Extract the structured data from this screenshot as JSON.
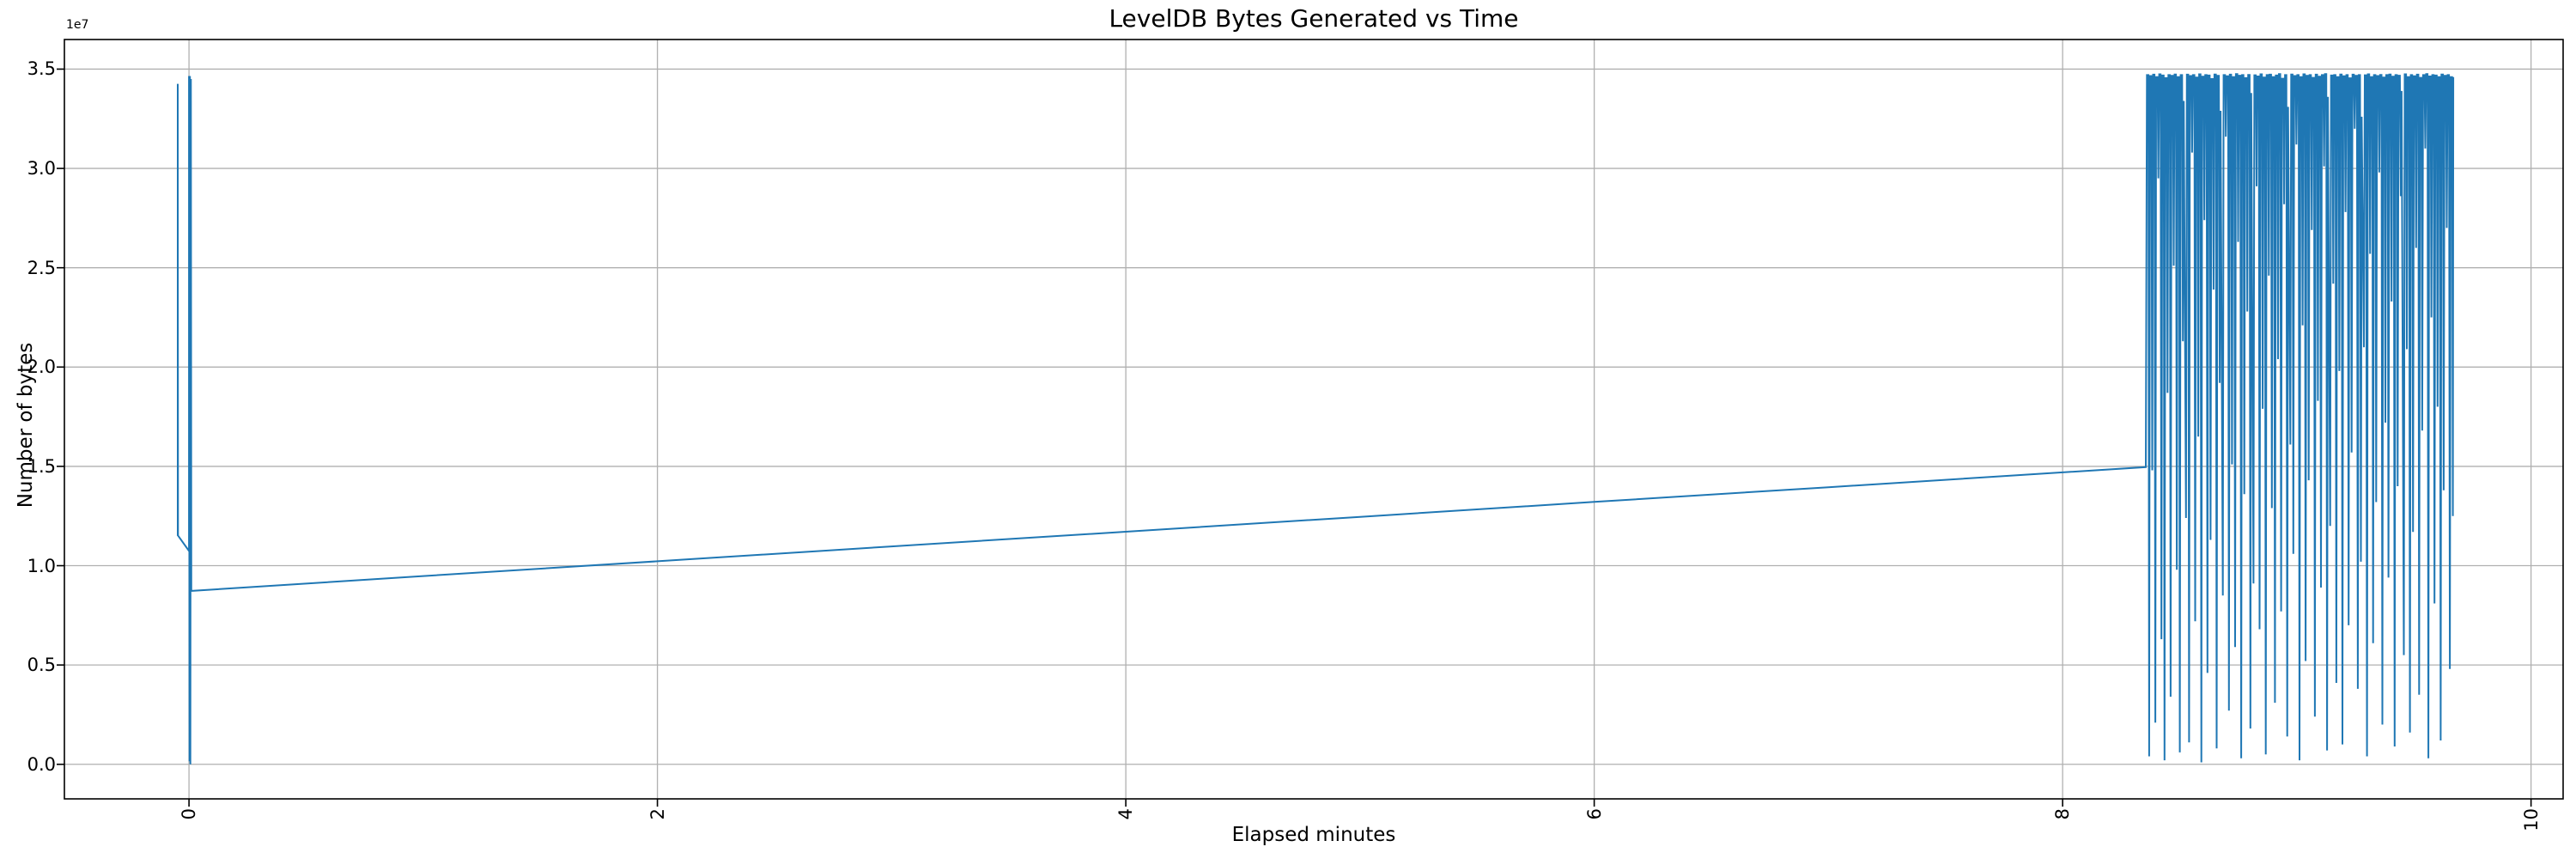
{
  "figure": {
    "background": "#ffffff"
  },
  "chart_data": {
    "type": "line",
    "title": "LevelDB Bytes Generated vs Time",
    "xlabel": "Elapsed minutes",
    "ylabel": "Number of bytes",
    "offset_text": "1e7",
    "grid": true,
    "grid_color": "#b0b0b0",
    "spine_color": "#000000",
    "line_color": "#1f77b4",
    "legend": "none",
    "xlim": [
      -0.532,
      10.137
    ],
    "ylim_e6": [
      -1.74,
      36.49
    ],
    "y_unit_multiplier": 1000000,
    "xticks": {
      "values": [
        0,
        2,
        4,
        6,
        8,
        10
      ],
      "labels": [
        "0",
        "2",
        "4",
        "6",
        "8",
        "10"
      ],
      "rotation_deg": 90
    },
    "yticks": {
      "values_e6": [
        0,
        5,
        10,
        15,
        20,
        25,
        30,
        35
      ],
      "labels": [
        "0.0",
        "0.5",
        "1.0",
        "1.5",
        "2.0",
        "2.5",
        "3.0",
        "3.5"
      ]
    },
    "series": [
      {
        "name": "leveldb-bytes-generated",
        "points_e6": [
          [
            -0.048,
            11.5
          ],
          [
            -0.048,
            34.26
          ],
          [
            -0.047,
            11.52
          ],
          [
            0.0,
            10.74
          ],
          [
            0.0,
            34.65
          ],
          [
            0.002,
            0.15
          ],
          [
            0.004,
            34.65
          ],
          [
            0.006,
            0.0
          ],
          [
            0.008,
            34.5
          ],
          [
            0.01,
            8.73
          ],
          [
            1.0,
            9.48
          ],
          [
            2.0,
            10.22
          ],
          [
            3.0,
            10.97
          ],
          [
            4.0,
            11.71
          ],
          [
            5.0,
            12.46
          ],
          [
            6.0,
            13.21
          ],
          [
            7.0,
            13.95
          ],
          [
            8.0,
            14.7
          ],
          [
            8.355,
            14.96
          ]
        ],
        "burst": {
          "x_start": 8.36,
          "x_step": 0.0131,
          "cap_dx": 0.006,
          "dip_dx": 0.0095,
          "cap_threshold_e6": 34.0,
          "highs_e6": [
            34.7,
            34.65,
            34.72,
            34.6,
            34.74,
            34.68,
            34.55,
            34.7,
            34.66,
            34.73,
            34.6,
            34.7,
            33.4,
            34.72,
            34.65,
            34.7,
            34.58,
            34.74,
            34.62,
            34.7,
            34.68,
            34.5,
            34.73,
            34.66,
            32.9,
            34.7,
            34.64,
            34.72,
            34.6,
            34.75,
            34.67,
            34.7,
            34.55,
            34.71,
            33.8,
            34.69,
            34.63,
            34.74,
            34.58,
            34.7,
            34.72,
            34.6,
            34.68,
            34.75,
            34.52,
            34.7,
            33.1,
            34.73,
            34.65,
            34.7,
            34.6,
            34.74,
            34.66,
            34.7,
            34.56,
            34.72,
            34.62,
            34.7,
            34.75,
            33.6,
            34.68,
            34.7,
            34.6,
            34.73,
            34.64,
            34.7,
            34.54,
            34.72,
            34.66,
            34.7,
            32.6,
            34.69,
            34.74,
            34.6,
            34.7,
            34.65,
            34.71,
            34.58,
            34.7,
            34.73,
            34.62,
            34.7,
            34.67,
            33.9,
            34.74,
            34.6,
            34.7,
            34.64,
            34.72,
            34.56,
            34.7,
            34.75,
            34.63,
            34.7,
            34.68,
            34.6,
            34.73,
            34.66,
            34.7,
            34.6
          ],
          "lows_e6": [
            0.4,
            14.8,
            2.1,
            29.5,
            6.3,
            0.2,
            18.7,
            3.4,
            25.1,
            9.8,
            0.6,
            21.3,
            12.4,
            1.1,
            30.8,
            7.2,
            16.5,
            0.1,
            27.4,
            4.6,
            11.3,
            23.9,
            0.8,
            19.2,
            8.5,
            31.6,
            2.7,
            15.1,
            5.9,
            26.3,
            0.3,
            13.6,
            22.8,
            1.8,
            9.1,
            29.1,
            6.8,
            17.9,
            0.5,
            24.6,
            12.9,
            3.1,
            20.4,
            7.7,
            28.2,
            1.4,
            16.1,
            10.6,
            31.2,
            0.2,
            22.1,
            5.2,
            14.3,
            26.9,
            2.4,
            18.3,
            8.9,
            30.1,
            0.7,
            12.0,
            24.2,
            4.1,
            19.8,
            1.0,
            27.8,
            7.0,
            15.7,
            32.0,
            3.8,
            10.2,
            21.0,
            0.4,
            25.7,
            6.1,
            13.2,
            29.8,
            2.0,
            17.2,
            9.4,
            23.3,
            0.9,
            14.0,
            28.6,
            5.5,
            20.9,
            1.6,
            11.7,
            26.0,
            3.5,
            16.8,
            31.0,
            0.3,
            22.5,
            8.1,
            18.0,
            1.2,
            13.8,
            27.0,
            4.8,
            12.5
          ],
          "end_point_e6": [
            9.668,
            34.6
          ]
        }
      }
    ]
  }
}
